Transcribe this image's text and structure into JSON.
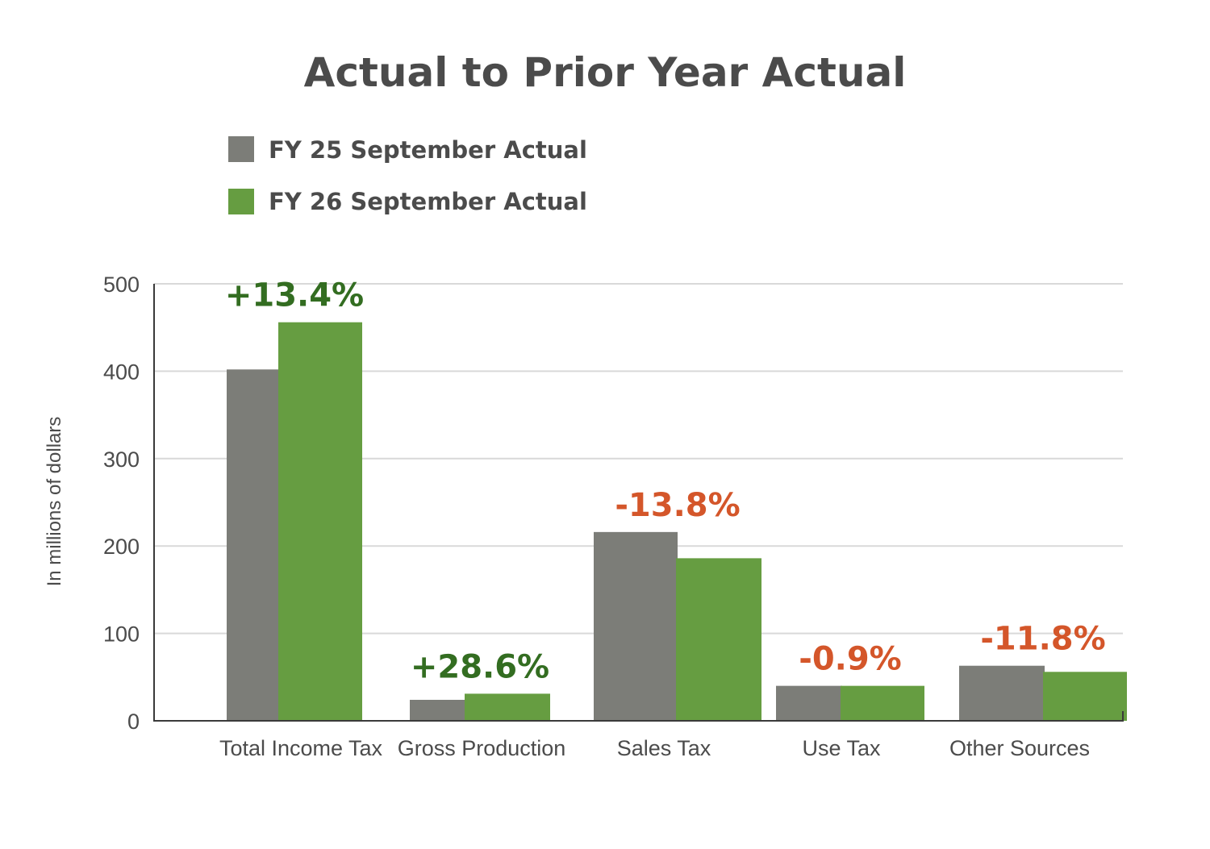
{
  "colors": {
    "fy25": "#7c7d78",
    "fy26": "#669d41",
    "positive": "#336d21",
    "negative": "#d4562a",
    "text": "#4b4b4b",
    "grid": "#d9d9d9",
    "axis": "#3a3a3a"
  },
  "chart_data": {
    "type": "bar",
    "title": "Actual to Prior Year Actual",
    "ylabel": "In millions of dollars",
    "xlabel": "",
    "ylim": [
      0,
      500
    ],
    "yticks": [
      0,
      100,
      200,
      300,
      400,
      500
    ],
    "grid": true,
    "legend_position": "top-left",
    "categories": [
      "Total Income Tax",
      "Gross Production",
      "Sales Tax",
      "Use Tax",
      "Other Sources"
    ],
    "series": [
      {
        "name": "FY 25 September Actual",
        "values": [
          402,
          24,
          216,
          40,
          63
        ]
      },
      {
        "name": "FY 26 September Actual",
        "values": [
          456,
          31,
          186,
          40,
          56
        ]
      }
    ],
    "change_labels": [
      "+13.4%",
      "+28.6%",
      "-13.8%",
      "-0.9%",
      "-11.8%"
    ],
    "change_direction": [
      "positive",
      "positive",
      "negative",
      "negative",
      "negative"
    ]
  }
}
